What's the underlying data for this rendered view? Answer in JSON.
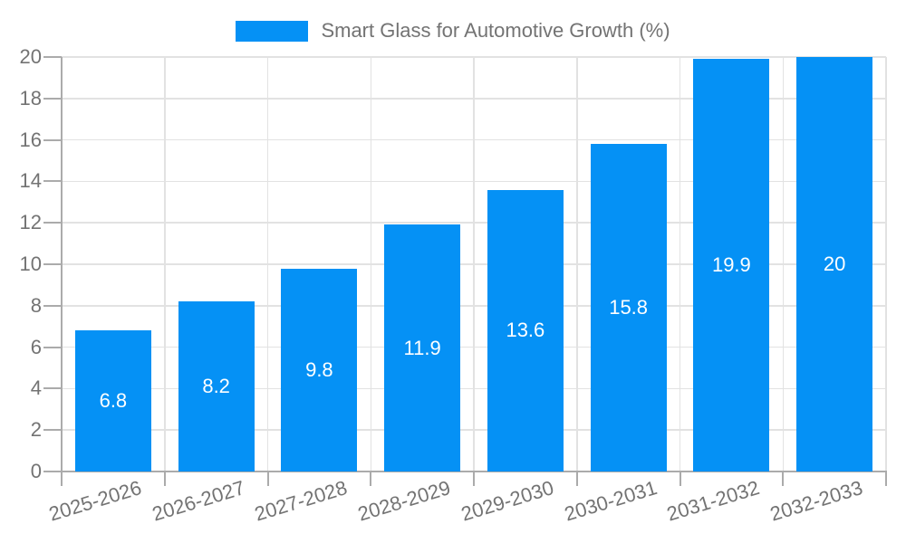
{
  "legend": {
    "label": "Smart Glass for Automotive Growth (%)"
  },
  "chart_data": {
    "type": "bar",
    "title": "Smart Glass for Automotive Growth (%)",
    "series_name": "Smart Glass for Automotive Growth (%)",
    "categories": [
      "2025-2026",
      "2026-2027",
      "2027-2028",
      "2028-2029",
      "2029-2030",
      "2030-2031",
      "2031-2032",
      "2032-2033"
    ],
    "values": [
      6.8,
      8.2,
      9.8,
      11.9,
      13.6,
      15.8,
      19.9,
      20
    ],
    "value_labels": [
      "6.8",
      "8.2",
      "9.8",
      "11.9",
      "13.6",
      "15.8",
      "19.9",
      "20"
    ],
    "xlabel": "",
    "ylabel": "",
    "ylim": [
      0,
      20
    ],
    "y_ticks": [
      0,
      2,
      4,
      6,
      8,
      10,
      12,
      14,
      16,
      18,
      20
    ],
    "grid": true,
    "legend_position": "top-center",
    "x_tick_rotation_deg": -17,
    "colors": {
      "bar": "#0591f5",
      "bar_label": "#ffffff",
      "grid": "#e2e2e2",
      "axis": "#ababab",
      "tick_label": "#737373",
      "legend_text": "#737373",
      "background": "#ffffff"
    }
  }
}
